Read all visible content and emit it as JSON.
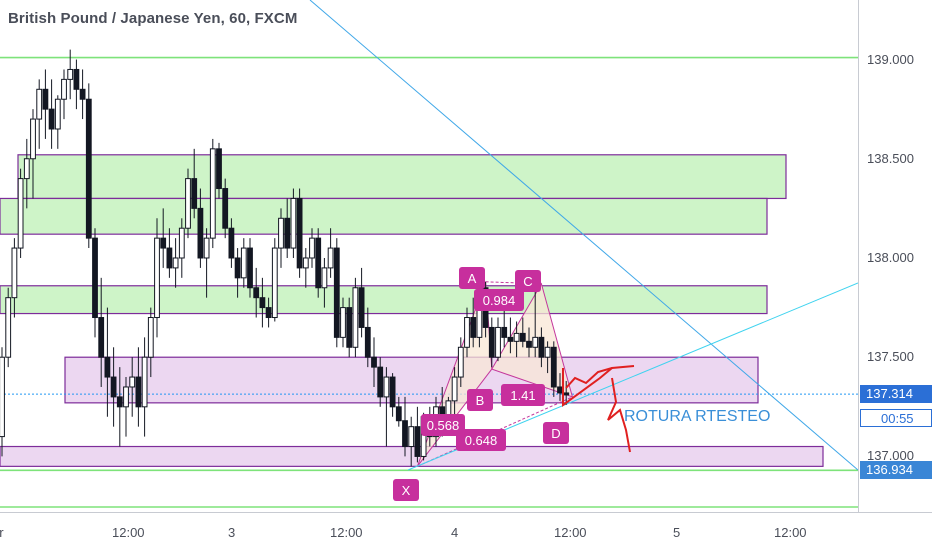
{
  "header": {
    "title": "British Pound / Japanese Yen, 60, FXCM"
  },
  "colors": {
    "bull": "#ffffff",
    "bear": "#131722",
    "green_zone_fill": "#c9f3c2",
    "green_zone_border": "#7d2c9a",
    "pink_zone_fill": "#ead3f0",
    "pattern_fill": "#f8e7d6",
    "pattern_line": "#c4379c",
    "trend_line": "#3fa7e8",
    "level_line": "#7ee37a",
    "accent": "#2196f3"
  },
  "price_axis": {
    "ticks": [
      "139.000",
      "138.500",
      "138.000",
      "137.500",
      "137.000"
    ],
    "current": "137.314",
    "countdown": "00:55",
    "low_level": "136.934"
  },
  "time_axis": {
    "ticks": [
      "ar",
      "12:00",
      "3",
      "12:00",
      "4",
      "12:00",
      "5",
      "12:00"
    ]
  },
  "pattern_labels": {
    "x": "X",
    "a": "A",
    "b": "B",
    "c": "C",
    "d": "D",
    "r1": "0.984",
    "r2": "1.41",
    "r3": "0.648",
    "r4": "0.568"
  },
  "annotation": {
    "text": "ROTURA RTESTEO"
  },
  "chart_data": {
    "type": "candlestick",
    "title": "British Pound / Japanese Yen, 60, FXCM",
    "x_labels": [
      "ar",
      "12:00",
      "3",
      "12:00",
      "4",
      "12:00",
      "5",
      "12:00"
    ],
    "y_ticks": [
      139.0,
      138.5,
      138.0,
      137.5,
      137.0
    ],
    "ylim": [
      136.72,
      139.3
    ],
    "current_price": 137.314,
    "horizontal_levels": [
      139.01,
      136.93
    ],
    "zones": [
      {
        "kind": "supply",
        "low": 138.3,
        "high": 138.52
      },
      {
        "kind": "supply",
        "low": 138.12,
        "high": 138.3
      },
      {
        "kind": "supply",
        "low": 137.72,
        "high": 137.86
      },
      {
        "kind": "demand",
        "low": 137.27,
        "high": 137.5
      },
      {
        "kind": "demand",
        "low": 136.95,
        "high": 137.05
      }
    ],
    "pattern": {
      "points": [
        {
          "label": "X",
          "x_index": 67,
          "price": 136.95
        },
        {
          "label": "A",
          "x_index": 78,
          "price": 137.88
        },
        {
          "label": "B",
          "x_index": 79,
          "price": 137.44
        },
        {
          "label": "C",
          "x_index": 87,
          "price": 137.87
        },
        {
          "label": "D",
          "x_index": 92,
          "price": 137.3
        }
      ],
      "ratios": [
        "0.984",
        "1.41",
        "0.648",
        "0.568"
      ]
    },
    "candles": [
      [
        137.1,
        137.55,
        137.0,
        137.5
      ],
      [
        137.5,
        137.85,
        137.45,
        137.8
      ],
      [
        137.8,
        138.1,
        137.7,
        138.05
      ],
      [
        138.05,
        138.45,
        138.0,
        138.4
      ],
      [
        138.4,
        138.6,
        138.25,
        138.5
      ],
      [
        138.5,
        138.75,
        138.3,
        138.7
      ],
      [
        138.7,
        138.9,
        138.55,
        138.85
      ],
      [
        138.85,
        138.95,
        138.6,
        138.75
      ],
      [
        138.75,
        138.9,
        138.55,
        138.65
      ],
      [
        138.65,
        138.82,
        138.55,
        138.8
      ],
      [
        138.8,
        138.95,
        138.7,
        138.9
      ],
      [
        138.9,
        139.05,
        138.8,
        138.95
      ],
      [
        138.95,
        139.0,
        138.75,
        138.85
      ],
      [
        138.85,
        138.95,
        138.7,
        138.8
      ],
      [
        138.8,
        138.88,
        138.05,
        138.1
      ],
      [
        138.1,
        138.15,
        137.6,
        137.7
      ],
      [
        137.7,
        137.9,
        137.35,
        137.5
      ],
      [
        137.5,
        137.75,
        137.2,
        137.4
      ],
      [
        137.4,
        137.55,
        137.15,
        137.3
      ],
      [
        137.3,
        137.45,
        137.05,
        137.25
      ],
      [
        137.25,
        137.4,
        137.1,
        137.35
      ],
      [
        137.35,
        137.5,
        137.2,
        137.4
      ],
      [
        137.4,
        137.55,
        137.15,
        137.25
      ],
      [
        137.25,
        137.6,
        137.1,
        137.5
      ],
      [
        137.5,
        137.75,
        137.4,
        137.7
      ],
      [
        137.7,
        138.2,
        137.6,
        138.1
      ],
      [
        138.1,
        138.25,
        137.95,
        138.05
      ],
      [
        138.05,
        138.15,
        137.9,
        137.95
      ],
      [
        137.95,
        138.1,
        137.85,
        138.0
      ],
      [
        138.0,
        138.2,
        137.9,
        138.15
      ],
      [
        138.15,
        138.45,
        138.1,
        138.4
      ],
      [
        138.4,
        138.55,
        138.2,
        138.25
      ],
      [
        138.25,
        138.35,
        137.95,
        138.0
      ],
      [
        138.0,
        138.15,
        137.8,
        138.1
      ],
      [
        138.1,
        138.6,
        138.05,
        138.55
      ],
      [
        138.55,
        138.58,
        138.3,
        138.35
      ],
      [
        138.35,
        138.4,
        138.1,
        138.15
      ],
      [
        138.15,
        138.2,
        137.95,
        138.0
      ],
      [
        138.0,
        138.05,
        137.8,
        137.9
      ],
      [
        137.9,
        138.1,
        137.85,
        138.05
      ],
      [
        138.05,
        138.1,
        137.8,
        137.85
      ],
      [
        137.85,
        137.95,
        137.7,
        137.8
      ],
      [
        137.8,
        137.9,
        137.65,
        137.75
      ],
      [
        137.75,
        137.8,
        137.65,
        137.7
      ],
      [
        137.7,
        138.1,
        137.68,
        138.05
      ],
      [
        138.05,
        138.25,
        137.95,
        138.2
      ],
      [
        138.2,
        138.3,
        138.0,
        138.05
      ],
      [
        138.05,
        138.35,
        138.0,
        138.3
      ],
      [
        138.3,
        138.35,
        137.9,
        137.95
      ],
      [
        137.95,
        138.05,
        137.85,
        138.0
      ],
      [
        138.0,
        138.15,
        137.95,
        138.1
      ],
      [
        138.1,
        138.15,
        137.8,
        137.85
      ],
      [
        137.85,
        138.0,
        137.75,
        137.95
      ],
      [
        137.95,
        138.15,
        137.9,
        138.05
      ],
      [
        138.05,
        138.1,
        137.55,
        137.6
      ],
      [
        137.6,
        137.8,
        137.55,
        137.75
      ],
      [
        137.75,
        137.8,
        137.5,
        137.55
      ],
      [
        137.55,
        137.9,
        137.5,
        137.85
      ],
      [
        137.85,
        137.95,
        137.6,
        137.65
      ],
      [
        137.65,
        137.75,
        137.45,
        137.5
      ],
      [
        137.5,
        137.6,
        137.35,
        137.45
      ],
      [
        137.45,
        137.5,
        137.25,
        137.3
      ],
      [
        137.3,
        137.45,
        137.05,
        137.4
      ],
      [
        137.4,
        137.42,
        137.2,
        137.25
      ],
      [
        137.25,
        137.3,
        137.15,
        137.18
      ],
      [
        137.18,
        137.3,
        137.0,
        137.05
      ],
      [
        137.05,
        137.2,
        136.95,
        137.15
      ],
      [
        137.15,
        137.25,
        136.97,
        137.0
      ],
      [
        137.0,
        137.22,
        136.98,
        137.2
      ],
      [
        137.2,
        137.25,
        137.05,
        137.1
      ],
      [
        137.1,
        137.3,
        137.05,
        137.25
      ],
      [
        137.25,
        137.35,
        137.1,
        137.15
      ],
      [
        137.15,
        137.3,
        137.12,
        137.28
      ],
      [
        137.28,
        137.45,
        137.2,
        137.4
      ],
      [
        137.4,
        137.6,
        137.35,
        137.55
      ],
      [
        137.55,
        137.75,
        137.5,
        137.7
      ],
      [
        137.7,
        137.8,
        137.55,
        137.6
      ],
      [
        137.6,
        137.88,
        137.55,
        137.85
      ],
      [
        137.85,
        137.88,
        137.6,
        137.65
      ],
      [
        137.65,
        137.7,
        137.45,
        137.5
      ],
      [
        137.5,
        137.7,
        137.48,
        137.65
      ],
      [
        137.65,
        137.75,
        137.55,
        137.6
      ],
      [
        137.6,
        137.7,
        137.52,
        137.58
      ],
      [
        137.58,
        137.68,
        137.5,
        137.62
      ],
      [
        137.62,
        137.7,
        137.55,
        137.58
      ],
      [
        137.58,
        137.65,
        137.5,
        137.55
      ],
      [
        137.55,
        137.87,
        137.5,
        137.6
      ],
      [
        137.6,
        137.65,
        137.45,
        137.5
      ],
      [
        137.5,
        137.58,
        137.42,
        137.55
      ],
      [
        137.55,
        137.58,
        137.3,
        137.35
      ],
      [
        137.35,
        137.42,
        137.28,
        137.32
      ],
      [
        137.32,
        137.38,
        137.26,
        137.31
      ]
    ]
  }
}
